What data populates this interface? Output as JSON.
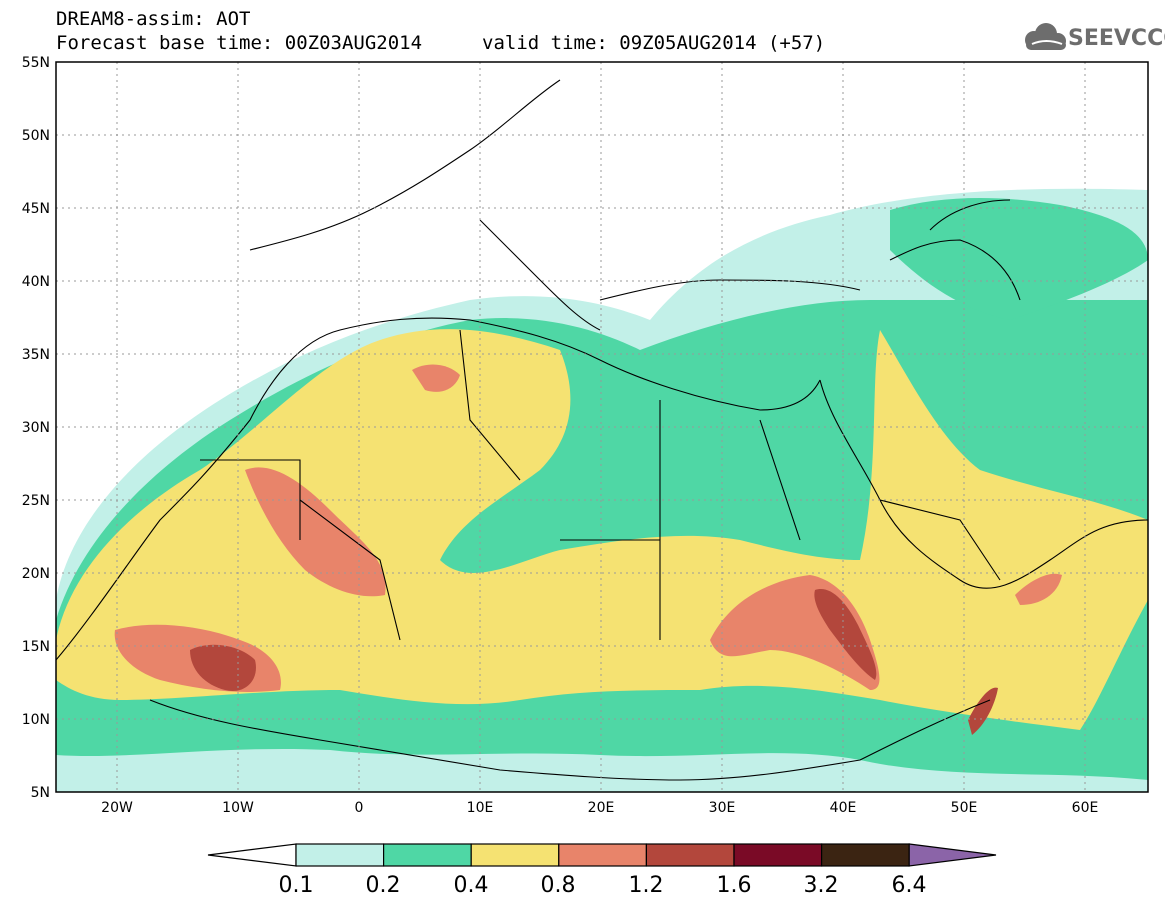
{
  "header": {
    "title": "DREAM8-assim: AOT",
    "base_time": "Forecast base time: 00Z03AUG2014",
    "valid_time": "valid time: 09Z05AUG2014 (+57)"
  },
  "logo": {
    "text": "SEEVCCC",
    "icon": "cloud-icon"
  },
  "axes": {
    "lat_ticks": [
      "55N",
      "50N",
      "45N",
      "40N",
      "35N",
      "30N",
      "25N",
      "20N",
      "15N",
      "10N",
      "5N"
    ],
    "lon_ticks": [
      "20W",
      "10W",
      "0",
      "10E",
      "20E",
      "30E",
      "40E",
      "50E",
      "60E"
    ]
  },
  "colorbar": {
    "labels": [
      "0.1",
      "0.2",
      "0.4",
      "0.8",
      "1.2",
      "1.6",
      "3.2",
      "6.4"
    ],
    "colors": [
      "#ffffff",
      "#c2f0e8",
      "#4fd7a5",
      "#f5e272",
      "#e8846a",
      "#b3473c",
      "#7a0a26",
      "#3b2412",
      "#8b64a8"
    ]
  },
  "colors": {
    "low": "#c2f0e8",
    "mid": "#4fd7a5",
    "high": "#f5e272",
    "vhigh": "#e8846a",
    "peak": "#b3473c"
  }
}
